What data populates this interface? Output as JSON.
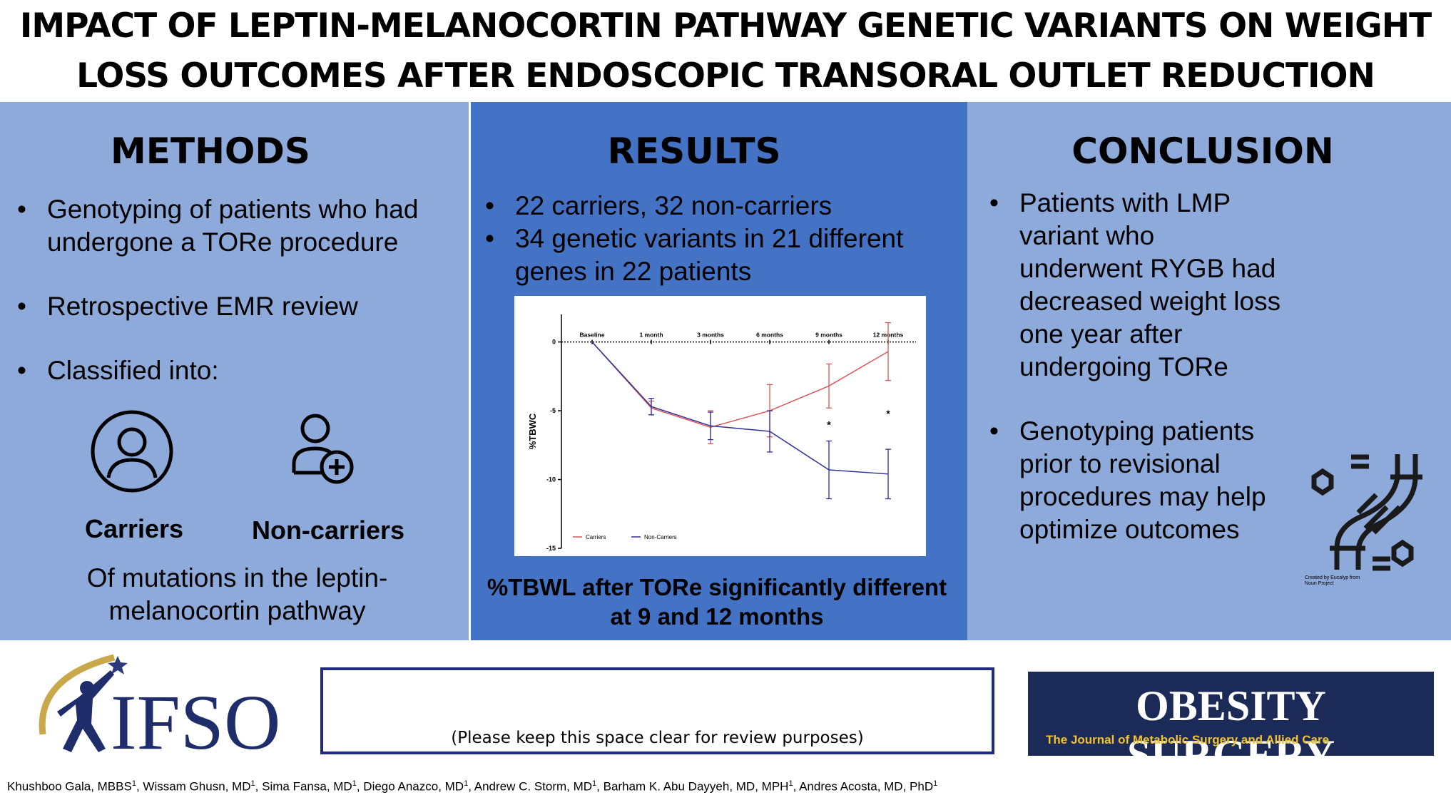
{
  "header": {
    "title": "IMPACT OF LEPTIN-MELANOCORTIN PATHWAY GENETIC VARIANTS ON WEIGHT LOSS OUTCOMES AFTER ENDOSCOPIC TRANSORAL OUTLET REDUCTION"
  },
  "methods": {
    "heading": "METHODS",
    "bullets": [
      "Genotyping of patients who had undergone a TORe procedure",
      "Retrospective EMR review",
      "Classified into:"
    ],
    "groups": [
      "Carriers",
      "Non-carriers"
    ],
    "note": "Of mutations in the leptin-melanocortin pathway"
  },
  "results": {
    "heading": "RESULTS",
    "bullets": [
      "22 carriers, 32 non-carriers",
      "34 genetic variants in 21 different genes in 22 patients"
    ],
    "finding": "%TBWL after TORe significantly different at 9 and 12 months"
  },
  "chart_data": {
    "type": "line",
    "categories": [
      "Baseline",
      "1 month",
      "3 months",
      "6 months",
      "9 months",
      "12 months"
    ],
    "y_label": "%TBWC",
    "ylim": [
      -15,
      2
    ],
    "yticks": [
      0,
      -5,
      -10,
      -15
    ],
    "series": [
      {
        "name": "Carriers",
        "color": "#d9575b",
        "values": [
          0,
          -4.8,
          -6.2,
          -5.0,
          -3.2,
          -0.7
        ],
        "errors": [
          null,
          0.5,
          1.2,
          1.9,
          1.6,
          2.1
        ]
      },
      {
        "name": "Non-Carriers",
        "color": "#30309a",
        "values": [
          0,
          -4.7,
          -6.1,
          -6.5,
          -9.3,
          -9.6
        ],
        "errors": [
          null,
          0.6,
          1.0,
          1.5,
          2.1,
          1.8
        ]
      }
    ],
    "annotations": [
      {
        "text": "*",
        "category": 4,
        "y": -6.0
      },
      {
        "text": "*",
        "category": 5,
        "y": -5.2
      }
    ],
    "legend": "bottom-left"
  },
  "conclusion": {
    "heading": "CONCLUSION",
    "bullets": [
      "Patients with LMP variant who underwent RYGB had decreased weight loss one year after undergoing TORe",
      "Genotyping patients prior to revisional procedures may help optimize outcomes"
    ],
    "icon_credit": "Created by Eucalyp from Noun Project"
  },
  "footer": {
    "ifso": "IFSO",
    "review_note": "(Please keep this space clear for review purposes)",
    "journal": "OBESITY SURGERY",
    "journal_subtitle": "The Journal of Metabolic Surgery and Allied Care",
    "authors": [
      {
        "name": "Khushboo Gala, MBBS",
        "affiliation": "1"
      },
      {
        "name": ", Wissam Ghusn, MD",
        "affiliation": "1"
      },
      {
        "name": ", Sima Fansa, MD",
        "affiliation": "1"
      },
      {
        "name": ", Diego Anazco, MD",
        "affiliation": "1"
      },
      {
        "name": ", Andrew C. Storm, MD",
        "affiliation": "1"
      },
      {
        "name": ", Barham K. Abu Dayyeh, MD, MPH",
        "affiliation": "1"
      },
      {
        "name": ", Andres Acosta, MD, PhD",
        "affiliation": "1"
      }
    ]
  }
}
